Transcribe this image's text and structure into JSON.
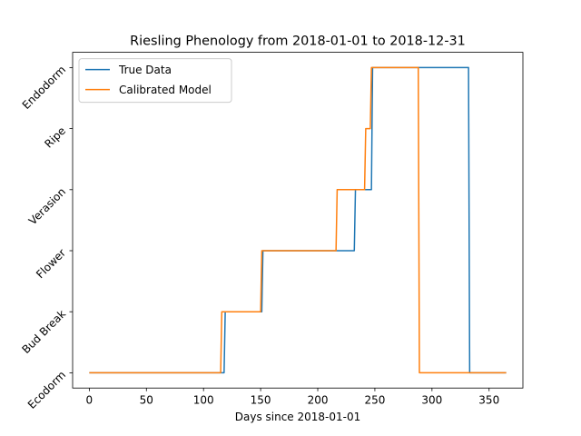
{
  "chart_data": {
    "type": "line",
    "title": "Riesling Phenology from 2018-01-01 to 2018-12-31",
    "xlabel": "Days since 2018-01-01",
    "ylabel": "",
    "xlim": [
      -14.6,
      379.6
    ],
    "ylim": [
      -0.25,
      5.25
    ],
    "x_ticks": [
      0,
      50,
      100,
      150,
      200,
      250,
      300,
      350
    ],
    "y_ticks": [
      0,
      1,
      2,
      3,
      4,
      5
    ],
    "y_tick_labels": [
      "Ecodorm",
      "Bud Break",
      "Flower",
      "Verasion",
      "Ripe",
      "Endodorm"
    ],
    "grid": false,
    "legend_position": "upper-left",
    "series": [
      {
        "name": "True Data",
        "color": "#1f77b4",
        "points": [
          [
            0,
            0
          ],
          [
            118,
            0
          ],
          [
            119,
            1
          ],
          [
            151,
            1
          ],
          [
            152,
            2
          ],
          [
            232,
            2
          ],
          [
            233,
            3
          ],
          [
            247,
            3
          ],
          [
            248,
            5
          ],
          [
            332,
            5
          ],
          [
            333,
            0
          ],
          [
            365,
            0
          ]
        ]
      },
      {
        "name": "Calibrated Model",
        "color": "#ff7f0e",
        "points": [
          [
            0,
            0
          ],
          [
            115,
            0
          ],
          [
            116,
            1
          ],
          [
            150,
            1
          ],
          [
            151,
            2
          ],
          [
            216,
            2
          ],
          [
            217,
            3
          ],
          [
            241,
            3
          ],
          [
            242,
            4
          ],
          [
            246,
            4
          ],
          [
            247,
            5
          ],
          [
            288,
            5
          ],
          [
            289,
            0
          ],
          [
            365,
            0
          ]
        ]
      }
    ]
  }
}
